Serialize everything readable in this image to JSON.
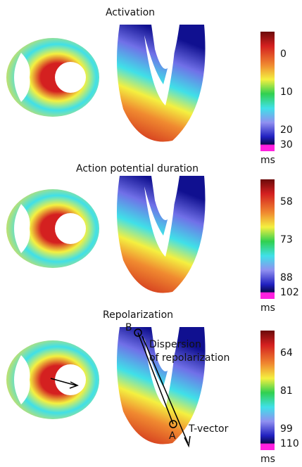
{
  "panels": [
    {
      "title": "Activation",
      "ticks": [
        0,
        10,
        20,
        30
      ],
      "unit": "ms"
    },
    {
      "title": "Action potential duration",
      "ticks": [
        58,
        73,
        88,
        102
      ],
      "unit": "ms"
    },
    {
      "title": "Repolarization",
      "ticks": [
        64,
        81,
        99,
        110
      ],
      "unit": "ms"
    }
  ],
  "annotations": {
    "point_b": "B",
    "point_a": "A",
    "dispersion_line1": "Dispersion",
    "dispersion_line2": "of repolarization",
    "t_vector": "T-vector"
  }
}
